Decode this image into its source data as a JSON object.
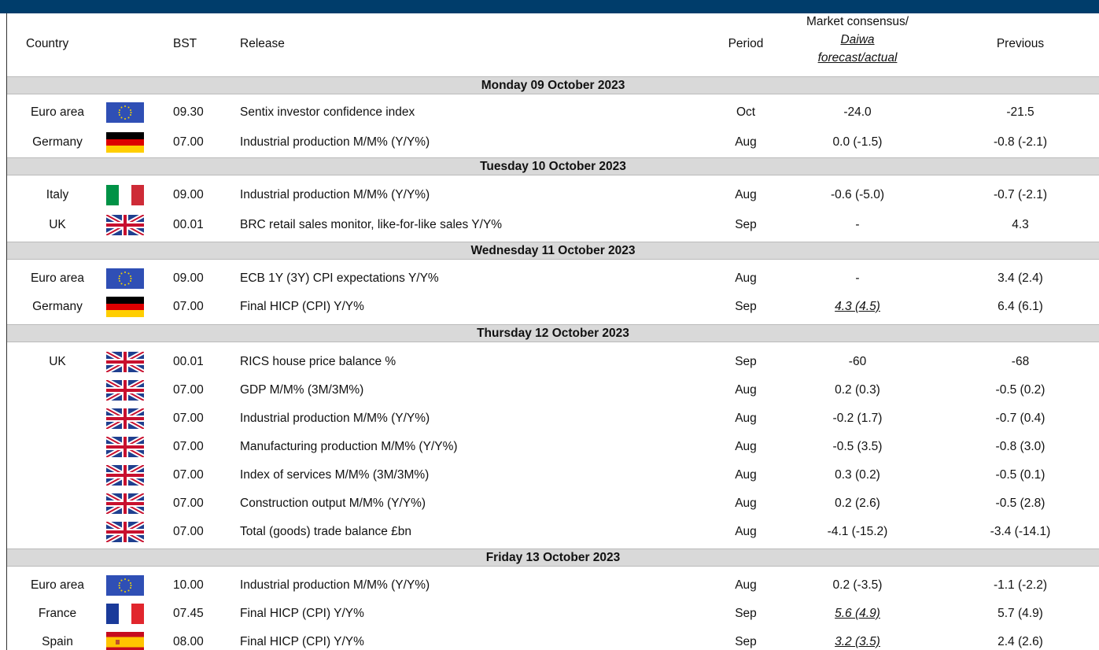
{
  "header": {
    "country": "Country",
    "bst": "BST",
    "release": "Release",
    "period": "Period",
    "consensus": [
      "Market consensus/",
      "Daiwa",
      "forecast/actual"
    ],
    "previous": "Previous"
  },
  "days": [
    {
      "date": "Monday 09 October 2023",
      "rows": [
        {
          "country": "Euro area",
          "bst": "09.30",
          "release": "Sentix investor confidence index",
          "period": "Oct",
          "consensus": "-24.0",
          "previous": "-21.5"
        },
        {
          "country": "Germany",
          "bst": "07.00",
          "release": "Industrial production M/M% (Y/Y%)",
          "period": "Aug",
          "consensus": "0.0 (-1.5)",
          "previous": "-0.8 (-2.1)"
        }
      ]
    },
    {
      "date": "Tuesday 10 October 2023",
      "rows": [
        {
          "country": "Italy",
          "bst": "09.00",
          "release": "Industrial production M/M% (Y/Y%)",
          "period": "Aug",
          "consensus": "-0.6 (-5.0)",
          "previous": "-0.7 (-2.1)"
        },
        {
          "country": "UK",
          "bst": "00.01",
          "release": "BRC retail sales monitor, like-for-like sales Y/Y%",
          "period": "Sep",
          "consensus": "-",
          "previous": "4.3"
        }
      ]
    },
    {
      "date": "Wednesday 11 October 2023",
      "rows": [
        {
          "country": "Euro area",
          "bst": "09.00",
          "release": "ECB 1Y (3Y) CPI expectations Y/Y%",
          "period": "Aug",
          "consensus": "-",
          "previous": "3.4 (2.4)"
        },
        {
          "country": "Germany",
          "bst": "07.00",
          "release": "Final HICP (CPI) Y/Y%",
          "period": "Sep",
          "consensus": "4.3 (4.5)",
          "previous": "6.4 (6.1)"
        }
      ]
    },
    {
      "date": "Thursday 12 October 2023",
      "rows": [
        {
          "country": "UK",
          "bst": "00.01",
          "release": "RICS house price balance %",
          "period": "Sep",
          "consensus": "-60",
          "previous": "-68"
        },
        {
          "bst": "07.00",
          "release": "GDP M/M% (3M/3M%)",
          "period": "Aug",
          "consensus": "0.2 (0.3)",
          "previous": "-0.5 (0.2)"
        },
        {
          "bst": "07.00",
          "release": "Industrial production M/M% (Y/Y%)",
          "period": "Aug",
          "consensus": "-0.2 (1.7)",
          "previous": "-0.7 (0.4)"
        },
        {
          "bst": "07.00",
          "release": "Manufacturing production M/M% (Y/Y%)",
          "period": "Aug",
          "consensus": "-0.5 (3.5)",
          "previous": "-0.8 (3.0)"
        },
        {
          "bst": "07.00",
          "release": "Index of services M/M% (3M/3M%)",
          "period": "Aug",
          "consensus": "0.3 (0.2)",
          "previous": "-0.5 (0.1)"
        },
        {
          "bst": "07.00",
          "release": "Construction output M/M% (Y/Y%)",
          "period": "Aug",
          "consensus": "0.2 (2.6)",
          "previous": "-0.5 (2.8)"
        },
        {
          "bst": "07.00",
          "release": "Total (goods) trade balance £bn",
          "period": "Aug",
          "consensus": "-4.1 (-15.2)",
          "previous": "-3.4 (-14.1)"
        }
      ]
    },
    {
      "date": "Friday 13 October 2023",
      "rows": [
        {
          "country": "Euro area",
          "bst": "10.00",
          "release": "Industrial production M/M% (Y/Y%)",
          "period": "Aug",
          "consensus": "0.2 (-3.5)",
          "previous": "-1.1 (-2.2)"
        },
        {
          "country": "France",
          "bst": "07.45",
          "release": "Final HICP (CPI) Y/Y%",
          "period": "Sep",
          "consensus": "5.6 (4.9)",
          "previous": "5.7 (4.9)"
        },
        {
          "country": "Spain",
          "bst": "08.00",
          "release": "Final HICP (CPI) Y/Y%",
          "period": "Sep",
          "consensus": "3.2 (3.5)",
          "previous": "2.4 (2.6)"
        }
      ]
    }
  ]
}
